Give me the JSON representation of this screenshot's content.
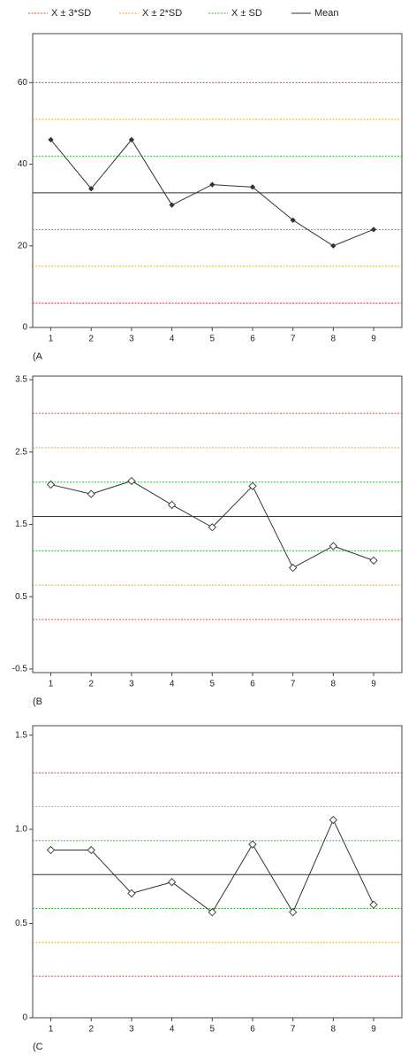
{
  "legend": [
    {
      "name": "X ± 3*SD",
      "color": "#e8413a",
      "dashed": true
    },
    {
      "name": "X ± 2*SD",
      "color": "#f0a92a",
      "dashed": true
    },
    {
      "name": "X ± SD",
      "color": "#3cb043",
      "dashed": true
    },
    {
      "name": "Mean",
      "color": "#333333",
      "dashed": false
    }
  ],
  "chart_data": [
    {
      "type": "line",
      "label": "(A",
      "x": [
        1,
        2,
        3,
        4,
        5,
        6,
        7,
        8,
        9
      ],
      "xlim": [
        0.55,
        9.7
      ],
      "xticks": [
        1,
        2,
        3,
        4,
        5,
        6,
        7,
        8,
        9
      ],
      "ylim": [
        0,
        72
      ],
      "yticks": [
        0,
        20,
        40,
        60
      ],
      "series": [
        {
          "color": "#333333",
          "marker": "filled",
          "values": [
            46,
            34,
            46,
            30,
            35,
            34.4,
            26.3,
            20,
            24
          ]
        }
      ],
      "mean": 33,
      "limits": [
        [
          60,
          6
        ],
        [
          51,
          15
        ],
        [
          42,
          24
        ]
      ]
    },
    {
      "type": "line",
      "label": "(B",
      "x": [
        1,
        2,
        3,
        4,
        5,
        6,
        7,
        8,
        9
      ],
      "xlim": [
        0.55,
        9.7
      ],
      "xticks": [
        1,
        2,
        3,
        4,
        5,
        6,
        7,
        8,
        9
      ],
      "ylim": [
        -0.55,
        3.55
      ],
      "yticks": [
        -0.5,
        0.5,
        1.5,
        2.5,
        3.5
      ],
      "series": [
        {
          "color": "#333333",
          "marker": "open",
          "values": [
            2.05,
            1.92,
            2.1,
            1.77,
            1.46,
            2.03,
            0.9,
            1.2,
            1.0
          ]
        }
      ],
      "mean": 1.61,
      "limits": [
        [
          3.035,
          0.185
        ],
        [
          2.56,
          0.66
        ],
        [
          2.085,
          1.135
        ]
      ]
    },
    {
      "type": "line",
      "label": "(C",
      "x": [
        1,
        2,
        3,
        4,
        5,
        6,
        7,
        8,
        9
      ],
      "xlim": [
        0.55,
        9.7
      ],
      "xticks": [
        1,
        2,
        3,
        4,
        5,
        6,
        7,
        8,
        9
      ],
      "ylim": [
        0,
        1.55
      ],
      "yticks": [
        0,
        0.5,
        {
          "value": 1,
          "label": "1.0"
        },
        1.5
      ],
      "series": [
        {
          "color": "#333333",
          "marker": "open",
          "values": [
            0.89,
            0.89,
            0.66,
            0.72,
            0.56,
            0.92,
            0.56,
            1.05,
            0.6
          ]
        }
      ],
      "mean": 0.76,
      "limits": [
        [
          1.3,
          0.22
        ],
        [
          1.12,
          0.4
        ],
        [
          0.94,
          0.58
        ]
      ]
    }
  ]
}
